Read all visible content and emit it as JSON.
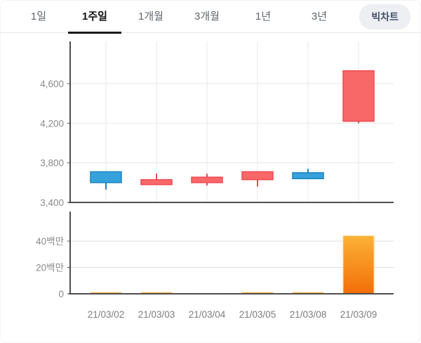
{
  "header": {
    "tabs": [
      {
        "label": "1일"
      },
      {
        "label": "1주일",
        "active": true
      },
      {
        "label": "1개월"
      },
      {
        "label": "3개월"
      },
      {
        "label": "1년"
      },
      {
        "label": "3년"
      }
    ],
    "big_chart_button_label": "빅차트"
  },
  "colors": {
    "up_fill": "#F96869",
    "up_border": "#EF4952",
    "down_fill": "#35A2DB",
    "down_border": "#1D84BE",
    "volume_gradient_top": "#FBB237",
    "volume_gradient_bottom": "#F36E06",
    "volume_highlight": "#FCD794",
    "grid_light": "#e9e9e9",
    "grid_volume": "#dcdcdc",
    "axis": "#4f4f4f",
    "tick_label": "#8a8a8a",
    "date_label": "#7d7d7d",
    "active_tab_underline": "#1a1a1a"
  },
  "chart_data": [
    {
      "type": "candlestick",
      "categories": [
        "21/03/02",
        "21/03/03",
        "21/03/04",
        "21/03/05",
        "21/03/08",
        "21/03/09"
      ],
      "series": [
        {
          "name": "price",
          "points": [
            {
              "open": 3710,
              "high": 3710,
              "low": 3530,
              "close": 3600
            },
            {
              "open": 3580,
              "high": 3690,
              "low": 3580,
              "close": 3630
            },
            {
              "open": 3600,
              "high": 3690,
              "low": 3570,
              "close": 3655
            },
            {
              "open": 3630,
              "high": 3715,
              "low": 3560,
              "close": 3710
            },
            {
              "open": 3700,
              "high": 3740,
              "low": 3635,
              "close": 3640
            },
            {
              "open": 4220,
              "high": 4735,
              "low": 4200,
              "close": 4730
            }
          ]
        }
      ],
      "ylim": [
        3400,
        5026
      ],
      "yticks": [
        {
          "label": "3,400",
          "value": 3400
        },
        {
          "label": "3,800",
          "value": 3800
        },
        {
          "label": "4,200",
          "value": 4200
        },
        {
          "label": "4,600",
          "value": 4600
        }
      ],
      "grid": "horizontal-and-vertical",
      "legend": "none"
    },
    {
      "type": "bar",
      "categories": [
        "21/03/02",
        "21/03/03",
        "21/03/04",
        "21/03/05",
        "21/03/08",
        "21/03/09"
      ],
      "values": [
        1.1,
        1.1,
        0.3,
        1.1,
        1.1,
        44
      ],
      "unit_label": "백만",
      "ylim": [
        0,
        62.4
      ],
      "yticks": [
        {
          "label": "0",
          "value": 0
        },
        {
          "label": "20백만",
          "value": 20
        },
        {
          "label": "40백만",
          "value": 40
        }
      ],
      "grid": "horizontal-only",
      "legend": "none"
    }
  ]
}
